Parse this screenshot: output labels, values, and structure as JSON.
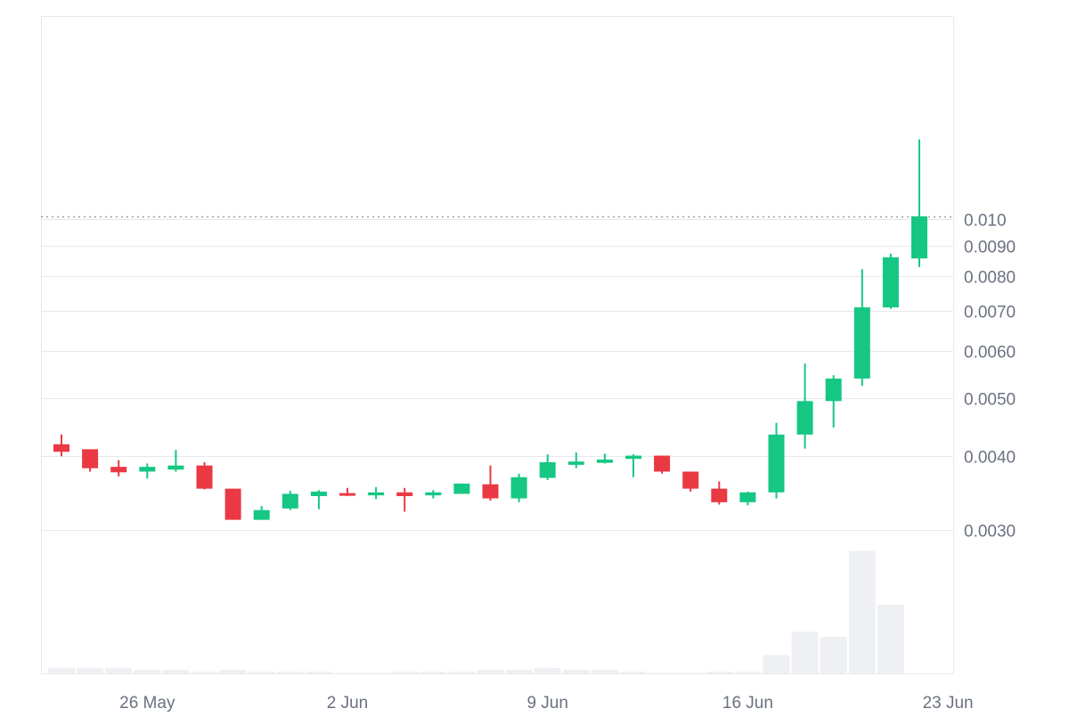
{
  "chart_data": {
    "type": "candlestick",
    "title": "",
    "scale": "log",
    "ylim": [
      0.003,
      0.0143
    ],
    "y_ticks": [
      {
        "value": 0.003,
        "label": "0.0030"
      },
      {
        "value": 0.004,
        "label": "0.0040"
      },
      {
        "value": 0.005,
        "label": "0.0050"
      },
      {
        "value": 0.006,
        "label": "0.0060"
      },
      {
        "value": 0.007,
        "label": "0.0070"
      },
      {
        "value": 0.008,
        "label": "0.0080"
      },
      {
        "value": 0.009,
        "label": "0.0090"
      },
      {
        "value": 0.01,
        "label": "0.010"
      }
    ],
    "x_ticks": [
      {
        "date": "2024-05-26",
        "label": "26 May"
      },
      {
        "date": "2024-06-02",
        "label": "2 Jun"
      },
      {
        "date": "2024-06-09",
        "label": "9 Jun"
      },
      {
        "date": "2024-06-16",
        "label": "16 Jun"
      },
      {
        "date": "2024-06-23",
        "label": "23 Jun"
      }
    ],
    "current_price_line": 0.0101,
    "grid": true,
    "colors": {
      "up": "#16c784",
      "down": "#ea3943",
      "volume": "#eef0f3",
      "grid": "#e6e9ee",
      "axis_text": "#6b7280",
      "price_line": "#9aa0a6"
    },
    "candles": [
      {
        "date": "2024-05-23",
        "open": 0.00418,
        "high": 0.00434,
        "low": 0.00399,
        "close": 0.00406
      },
      {
        "date": "2024-05-24",
        "open": 0.0041,
        "high": 0.0041,
        "low": 0.00376,
        "close": 0.00381
      },
      {
        "date": "2024-05-25",
        "open": 0.00383,
        "high": 0.00393,
        "low": 0.00369,
        "close": 0.00375
      },
      {
        "date": "2024-05-26",
        "open": 0.00376,
        "high": 0.00388,
        "low": 0.00366,
        "close": 0.00383
      },
      {
        "date": "2024-05-27",
        "open": 0.00379,
        "high": 0.00409,
        "low": 0.00376,
        "close": 0.00385
      },
      {
        "date": "2024-05-28",
        "open": 0.00385,
        "high": 0.0039,
        "low": 0.00351,
        "close": 0.00352
      },
      {
        "date": "2024-05-29",
        "open": 0.00352,
        "high": 0.00352,
        "low": 0.00312,
        "close": 0.00312
      },
      {
        "date": "2024-05-30",
        "open": 0.00312,
        "high": 0.00329,
        "low": 0.00312,
        "close": 0.00324
      },
      {
        "date": "2024-05-31",
        "open": 0.00326,
        "high": 0.00349,
        "low": 0.00324,
        "close": 0.00345
      },
      {
        "date": "2024-06-01",
        "open": 0.00342,
        "high": 0.0035,
        "low": 0.00325,
        "close": 0.00348
      },
      {
        "date": "2024-06-02",
        "open": 0.00346,
        "high": 0.00353,
        "low": 0.00342,
        "close": 0.00343
      },
      {
        "date": "2024-06-03",
        "open": 0.00343,
        "high": 0.00354,
        "low": 0.00338,
        "close": 0.00347
      },
      {
        "date": "2024-06-04",
        "open": 0.00347,
        "high": 0.00353,
        "low": 0.00322,
        "close": 0.00342
      },
      {
        "date": "2024-06-05",
        "open": 0.00343,
        "high": 0.0035,
        "low": 0.00339,
        "close": 0.00347
      },
      {
        "date": "2024-06-06",
        "open": 0.00345,
        "high": 0.00359,
        "low": 0.00345,
        "close": 0.00359
      },
      {
        "date": "2024-06-07",
        "open": 0.00358,
        "high": 0.00385,
        "low": 0.00336,
        "close": 0.00339
      },
      {
        "date": "2024-06-08",
        "open": 0.00339,
        "high": 0.00373,
        "low": 0.00334,
        "close": 0.00368
      },
      {
        "date": "2024-06-09",
        "open": 0.00367,
        "high": 0.00402,
        "low": 0.00364,
        "close": 0.0039
      },
      {
        "date": "2024-06-10",
        "open": 0.00386,
        "high": 0.00405,
        "low": 0.00381,
        "close": 0.00391
      },
      {
        "date": "2024-06-11",
        "open": 0.00389,
        "high": 0.00403,
        "low": 0.00388,
        "close": 0.00394
      },
      {
        "date": "2024-06-12",
        "open": 0.00395,
        "high": 0.00402,
        "low": 0.00368,
        "close": 0.004
      },
      {
        "date": "2024-06-13",
        "open": 0.004,
        "high": 0.004,
        "low": 0.00373,
        "close": 0.00376
      },
      {
        "date": "2024-06-14",
        "open": 0.00376,
        "high": 0.00376,
        "low": 0.00348,
        "close": 0.00352
      },
      {
        "date": "2024-06-15",
        "open": 0.00352,
        "high": 0.00362,
        "low": 0.00331,
        "close": 0.00334
      },
      {
        "date": "2024-06-16",
        "open": 0.00334,
        "high": 0.00348,
        "low": 0.0033,
        "close": 0.00347
      },
      {
        "date": "2024-06-17",
        "open": 0.00347,
        "high": 0.00454,
        "low": 0.00339,
        "close": 0.00434
      },
      {
        "date": "2024-06-18",
        "open": 0.00434,
        "high": 0.00571,
        "low": 0.00411,
        "close": 0.00494
      },
      {
        "date": "2024-06-19",
        "open": 0.00494,
        "high": 0.00546,
        "low": 0.00446,
        "close": 0.00539
      },
      {
        "date": "2024-06-20",
        "open": 0.00539,
        "high": 0.00823,
        "low": 0.00524,
        "close": 0.0071
      },
      {
        "date": "2024-06-21",
        "open": 0.0071,
        "high": 0.00874,
        "low": 0.00706,
        "close": 0.00862
      },
      {
        "date": "2024-06-22",
        "open": 0.00858,
        "high": 0.0136,
        "low": 0.0083,
        "close": 0.0101
      }
    ],
    "volume": [
      1.6,
      1.6,
      1.6,
      1.1,
      1.1,
      0.5,
      1.1,
      0.5,
      0.5,
      0.5,
      0.2,
      0.2,
      0.5,
      0.5,
      0.5,
      1.1,
      1.1,
      1.6,
      1.1,
      1.1,
      0.5,
      0.2,
      0.2,
      0.5,
      0.5,
      5.4,
      12.3,
      10.8,
      36.2,
      20.3,
      0
    ]
  }
}
